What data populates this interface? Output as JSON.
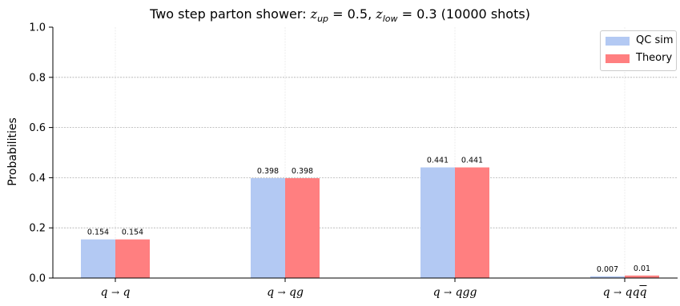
{
  "title": {
    "prefix": "Two step parton shower: ",
    "z_up_symbol": "z",
    "z_up_sub": "up",
    "z_up_value": " = 0.5, ",
    "z_low_symbol": "z",
    "z_low_sub": "low",
    "z_low_value": " = 0.3 (10000 shots)"
  },
  "chart_data": {
    "type": "bar",
    "title": "Two step parton shower: z_up = 0.5, z_low = 0.3 (10000 shots)",
    "xlabel": "",
    "ylabel": "Probabilities",
    "ylim": [
      0.0,
      1.0
    ],
    "yticks": [
      "0.0",
      "0.2",
      "0.4",
      "0.6",
      "0.8",
      "1.0"
    ],
    "categories": [
      "q → q",
      "q → qg",
      "q → qgg",
      "q → qq̄q"
    ],
    "series": [
      {
        "name": "QC sim",
        "values": [
          0.154,
          0.398,
          0.441,
          0.007
        ],
        "labels": [
          "0.154",
          "0.398",
          "0.441",
          "0.007"
        ],
        "color": "#b3c9f3"
      },
      {
        "name": "Theory",
        "values": [
          0.154,
          0.398,
          0.441,
          0.01
        ],
        "labels": [
          "0.154",
          "0.398",
          "0.441",
          "0.01"
        ],
        "color": "#ff7f80"
      }
    ],
    "grid": true,
    "legend_position": "top-right"
  },
  "xtick_parts": [
    {
      "lhs": "q",
      "arrow": "→",
      "rhs": "q",
      "rhs_bar": ""
    },
    {
      "lhs": "q",
      "arrow": "→",
      "rhs": "qg",
      "rhs_bar": ""
    },
    {
      "lhs": "q",
      "arrow": "→",
      "rhs": "qgg",
      "rhs_bar": ""
    },
    {
      "lhs": "q",
      "arrow": "→",
      "rhs": "qq",
      "rhs_bar": "q"
    }
  ]
}
